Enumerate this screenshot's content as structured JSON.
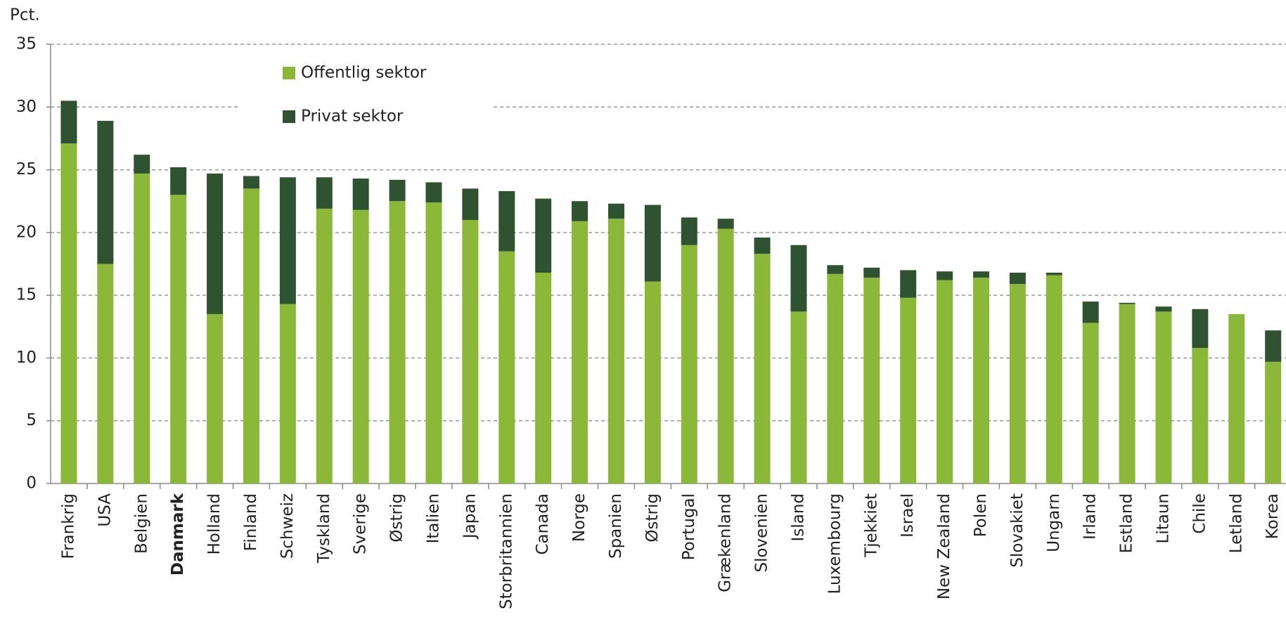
{
  "chart_data": {
    "type": "stacked_bar",
    "y_label": "Pct.",
    "categories": [
      "Frankrig",
      "USA",
      "Belgien",
      "Danmark",
      "Holland",
      "Finland",
      "Schweiz",
      "Tyskland",
      "Sverige",
      "Østrig",
      "Italien",
      "Japan",
      "Storbritannien",
      "Canada",
      "Norge",
      "Spanien",
      "Østrig",
      "Portugal",
      "Grækenland",
      "Slovenien",
      "Island",
      "Luxembourg",
      "Tjekkiet",
      "Israel",
      "New Zealand",
      "Polen",
      "Slovakiet",
      "Ungarn",
      "Irland",
      "Estland",
      "Litaun",
      "Chile",
      "Letland",
      "Korea"
    ],
    "highlight_index": 3,
    "series": [
      {
        "name": "Offentlig sektor",
        "color": "#8bb838",
        "values": [
          27.1,
          17.5,
          24.7,
          23.0,
          13.5,
          23.5,
          14.3,
          21.9,
          21.8,
          22.5,
          22.4,
          21.0,
          18.5,
          16.8,
          20.9,
          21.1,
          16.1,
          19.0,
          20.3,
          18.3,
          13.7,
          16.7,
          16.4,
          14.8,
          16.2,
          16.4,
          15.9,
          16.6,
          12.8,
          14.3,
          13.7,
          10.8,
          13.5,
          9.7
        ]
      },
      {
        "name": "Privat sektor",
        "color": "#2f5331",
        "values": [
          3.4,
          11.4,
          1.5,
          2.2,
          11.2,
          1.0,
          10.1,
          2.5,
          2.5,
          1.7,
          1.6,
          2.5,
          4.8,
          5.9,
          1.6,
          1.2,
          6.1,
          2.2,
          0.8,
          1.3,
          5.3,
          0.7,
          0.8,
          2.2,
          0.7,
          0.5,
          0.9,
          0.2,
          1.7,
          0.1,
          0.4,
          3.1,
          0.0,
          2.5
        ]
      }
    ],
    "ylim": [
      0,
      35
    ],
    "yticks": [
      0,
      5,
      10,
      15,
      20,
      25,
      30,
      35
    ],
    "grid": true
  }
}
